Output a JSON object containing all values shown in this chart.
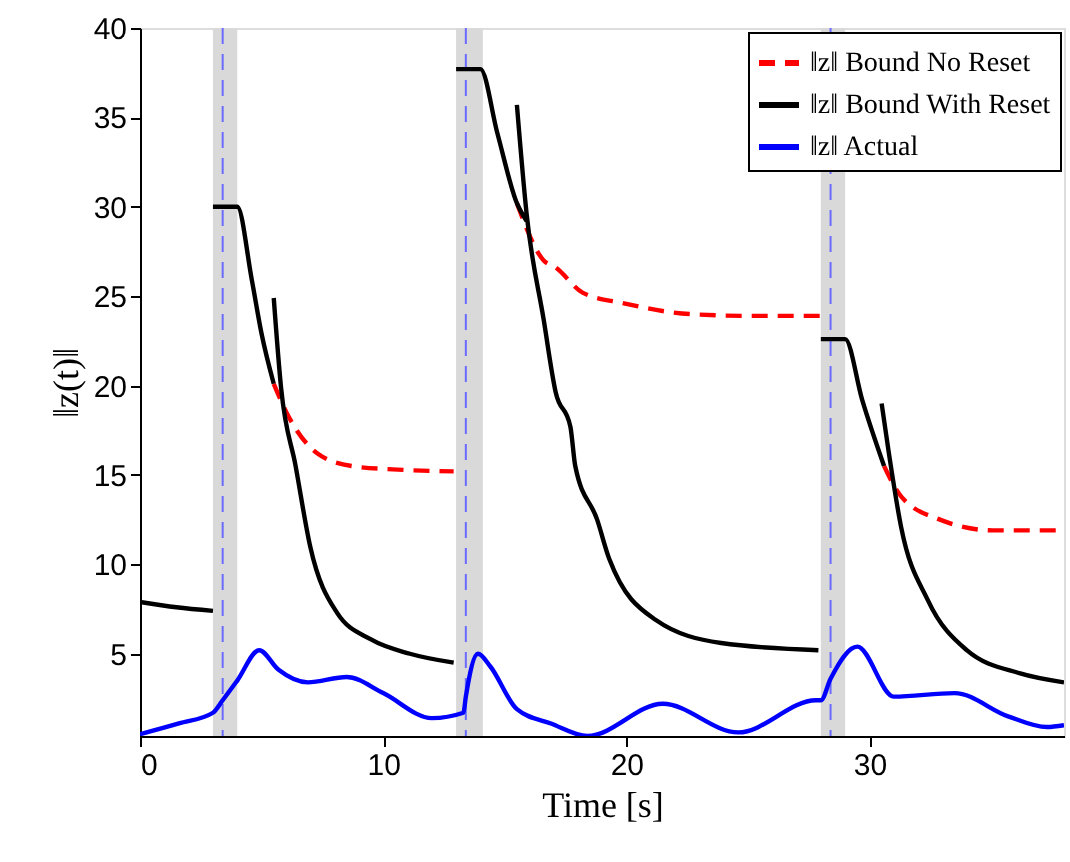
{
  "chart_data": {
    "type": "line",
    "xlabel": "Time [s]",
    "ylabel": "‖z(t)‖",
    "xlim": [
      0,
      38
    ],
    "ylim": [
      0.4,
      40
    ],
    "xticks": [
      0,
      10,
      20,
      30
    ],
    "yticks": [
      5,
      10,
      15,
      20,
      25,
      30,
      35,
      40
    ],
    "grid": false,
    "legend": "top right",
    "marker": "none",
    "series": [
      {
        "name": "‖z‖ Bound No Reset",
        "color": "#ff0000",
        "line_style": "dashed",
        "x": [
          5.5,
          6.1,
          7.3,
          8.7,
          10.6,
          12.9,
          null,
          15.5,
          16.6,
          17.1,
          18.2,
          19.9,
          22.6,
          25.0,
          27.2,
          28.0,
          null,
          30.6,
          31.3,
          32.9,
          35.1,
          38.0
        ],
        "values": [
          20.1,
          18.3,
          16.2,
          15.5,
          15.3,
          15.2,
          null,
          30.2,
          27.0,
          26.6,
          25.2,
          24.6,
          24.0,
          23.9,
          23.9,
          23.9,
          null,
          15.5,
          13.8,
          12.5,
          11.9,
          11.9
        ]
      },
      {
        "name": "‖z‖ Bound With Reset",
        "color": "#000000",
        "line_style": "solid",
        "x": [
          0,
          1.5,
          3.0,
          null,
          3.0,
          4.0,
          4.6,
          5.0,
          5.5,
          null,
          5.5,
          5.8,
          6.4,
          7.0,
          8.1,
          9.5,
          11.1,
          12.9,
          null,
          13.0,
          14.0,
          14.7,
          15.5,
          15.9,
          null,
          15.5,
          15.9,
          16.6,
          17.1,
          17.7,
          17.9,
          18.8,
          19.3,
          21.2,
          23.9,
          27.9,
          null,
          28.0,
          29.0,
          29.7,
          30.6,
          null,
          30.5,
          30.8,
          31.3,
          32.4,
          34.0,
          36.2,
          38.0
        ],
        "values": [
          7.9,
          7.6,
          7.4,
          null,
          30.0,
          30.0,
          25.9,
          22.9,
          20.1,
          null,
          24.9,
          19.9,
          15.5,
          11.0,
          7.3,
          5.8,
          5.0,
          4.5,
          null,
          37.7,
          37.7,
          34.1,
          30.2,
          29.2,
          null,
          35.7,
          29.6,
          23.7,
          19.6,
          17.7,
          15.5,
          12.5,
          10.3,
          6.9,
          5.6,
          5.2,
          null,
          22.6,
          22.6,
          19.2,
          15.5,
          null,
          19.0,
          16.2,
          12.1,
          8.0,
          5.2,
          3.9,
          3.4
        ]
      },
      {
        "name": "‖z‖ Actual",
        "color": "#0000ff",
        "line_style": "solid",
        "x": [
          0,
          1.6,
          3.0,
          3.4,
          4.0,
          4.9,
          5.7,
          6.9,
          8.5,
          10.0,
          12.0,
          13.3,
          13.4,
          13.9,
          14.4,
          15.5,
          16.9,
          18.4,
          21.5,
          24.6,
          27.8,
          28.0,
          28.4,
          29.5,
          31.0,
          33.5,
          35.7,
          37.3,
          38.0
        ],
        "values": [
          0.5,
          1.1,
          1.7,
          2.4,
          3.5,
          5.2,
          4.1,
          3.4,
          3.7,
          2.8,
          1.4,
          1.7,
          2.6,
          5.0,
          4.3,
          1.9,
          1.1,
          0.4,
          2.2,
          0.6,
          2.4,
          2.4,
          3.6,
          5.4,
          2.6,
          2.8,
          1.5,
          0.9,
          1.0
        ]
      }
    ],
    "bands": [
      {
        "axis": "x",
        "from": 3.0,
        "to": 4.0,
        "color": "#d9d9d9"
      },
      {
        "axis": "x",
        "from": 13.0,
        "to": 14.1,
        "color": "#d9d9d9"
      },
      {
        "axis": "x",
        "from": 28.0,
        "to": 29.0,
        "color": "#d9d9d9"
      }
    ],
    "ref_lines": [
      {
        "axis": "x",
        "value": 3.4,
        "color": "#6a6aff",
        "line_style": "dashed"
      },
      {
        "axis": "x",
        "value": 13.4,
        "color": "#6a6aff",
        "line_style": "dashed"
      },
      {
        "axis": "x",
        "value": 28.4,
        "color": "#6a6aff",
        "line_style": "dashed"
      }
    ]
  }
}
